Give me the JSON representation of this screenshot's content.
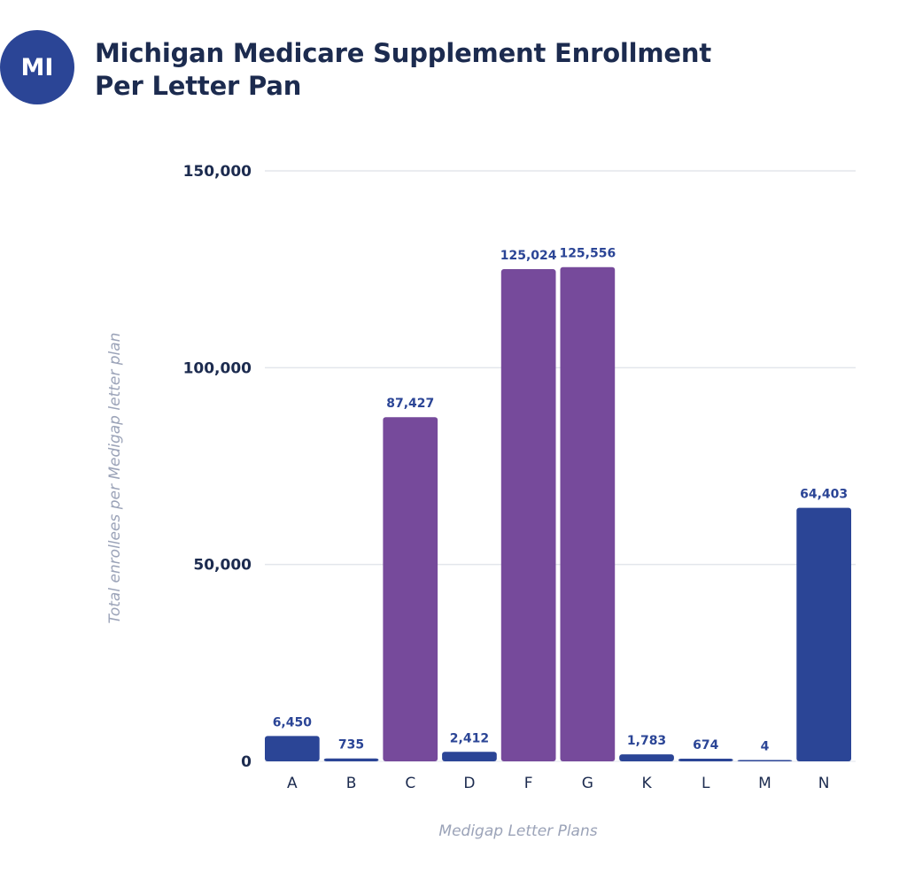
{
  "badge": {
    "text": "MI"
  },
  "title": {
    "line1": "Michigan Medicare Supplement Enrollment",
    "line2": "Per Letter Pan"
  },
  "colors": {
    "primary": "#2b4596",
    "highlight": "#764a9b",
    "grid": "#e3e6ec",
    "text": "#1c2b4f",
    "axis_label": "#9ba3b8"
  },
  "chart_data": {
    "type": "bar",
    "title": "Michigan Medicare Supplement Enrollment Per Letter Pan",
    "xlabel": "Medigap Letter Plans",
    "ylabel": "Total enrollees per Medigap letter plan",
    "categories": [
      "A",
      "B",
      "C",
      "D",
      "F",
      "G",
      "K",
      "L",
      "M",
      "N"
    ],
    "values": [
      6450,
      735,
      87427,
      2412,
      125024,
      125556,
      1783,
      674,
      4,
      64403
    ],
    "value_labels": [
      "6,450",
      "735",
      "87,427",
      "2,412",
      "125,024",
      "125,556",
      "1,783",
      "674",
      "4",
      "64,403"
    ],
    "highlighted": [
      false,
      false,
      true,
      false,
      true,
      true,
      false,
      false,
      false,
      false
    ],
    "ylim": [
      0,
      150000
    ],
    "yticks": [
      0,
      50000,
      100000,
      150000
    ],
    "ytick_labels": [
      "0",
      "50,000",
      "100,000",
      "150,000"
    ],
    "grid": true,
    "legend": "none"
  }
}
